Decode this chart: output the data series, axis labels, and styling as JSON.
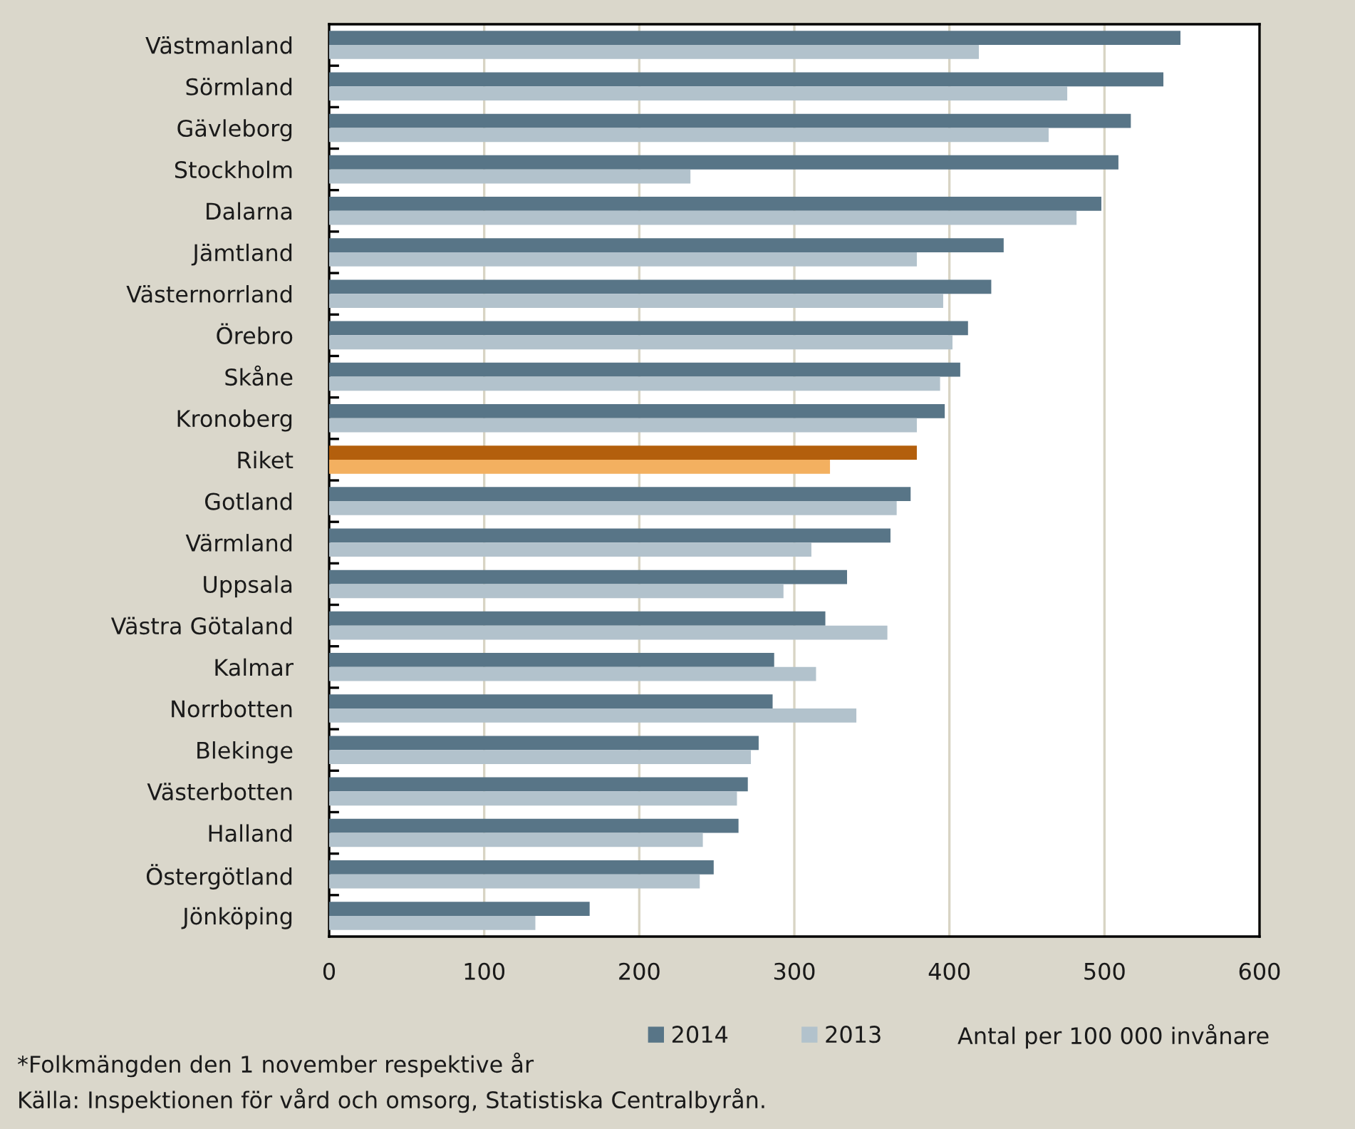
{
  "chart_data": {
    "type": "bar",
    "orientation": "horizontal",
    "categories": [
      "Västmanland",
      "Sörmland",
      "Gävleborg",
      "Stockholm",
      "Dalarna",
      "Jämtland",
      "Västernorrland",
      "Örebro",
      "Skåne",
      "Kronoberg",
      "Riket",
      "Gotland",
      "Värmland",
      "Uppsala",
      "Västra Götaland",
      "Kalmar",
      "Norrbotten",
      "Blekinge",
      "Västerbotten",
      "Halland",
      "Östergötland",
      "Jönköping"
    ],
    "series": [
      {
        "name": "2014",
        "color": "#587587",
        "colors": [
          "#587587",
          "#587587",
          "#587587",
          "#587587",
          "#587587",
          "#587587",
          "#587587",
          "#587587",
          "#587587",
          "#587587",
          "#b35f0d",
          "#587587",
          "#587587",
          "#587587",
          "#587587",
          "#587587",
          "#587587",
          "#587587",
          "#587587",
          "#587587",
          "#587587",
          "#587587"
        ],
        "values": [
          549,
          538,
          517,
          509,
          498,
          435,
          427,
          412,
          407,
          397,
          379,
          375,
          362,
          334,
          320,
          287,
          286,
          277,
          270,
          264,
          248,
          168
        ]
      },
      {
        "name": "2013",
        "color": "#b2c2cc",
        "colors": [
          "#b2c2cc",
          "#b2c2cc",
          "#b2c2cc",
          "#b2c2cc",
          "#b2c2cc",
          "#b2c2cc",
          "#b2c2cc",
          "#b2c2cc",
          "#b2c2cc",
          "#b2c2cc",
          "#f3b060",
          "#b2c2cc",
          "#b2c2cc",
          "#b2c2cc",
          "#b2c2cc",
          "#b2c2cc",
          "#b2c2cc",
          "#b2c2cc",
          "#b2c2cc",
          "#b2c2cc",
          "#b2c2cc",
          "#b2c2cc"
        ],
        "values": [
          419,
          476,
          464,
          233,
          482,
          379,
          396,
          402,
          394,
          379,
          323,
          366,
          311,
          293,
          360,
          314,
          340,
          272,
          263,
          241,
          239,
          133
        ]
      }
    ],
    "xlim": [
      0,
      600
    ],
    "xticks": [
      0,
      100,
      200,
      300,
      400,
      500,
      600
    ],
    "xlabel": "Antal per 100 000 invånare",
    "legend": "bottom",
    "grid": "x",
    "annotations": [
      "*Folkmängden den 1 november respektive år",
      "Källa: Inspektionen för vård och omsorg, Statistiska Centralbyrån."
    ]
  }
}
